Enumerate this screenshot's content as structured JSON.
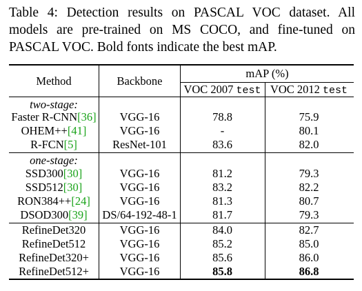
{
  "caption": {
    "line1": "Table 4: Detection results on PASCAL VOC dataset. All",
    "line2": "models are pre-trained on MS COCO, and fine-tuned on",
    "line3": "PASCAL VOC. Bold fonts indicate the best mAP."
  },
  "header": {
    "method": "Method",
    "backbone": "Backbone",
    "map": "mAP (%)",
    "voc2007_prefix": "VOC 2007 ",
    "voc2007_mono": "test",
    "voc2012_prefix": "VOC 2012 ",
    "voc2012_mono": "test"
  },
  "group1_label": "two-stage:",
  "group2_label": "one-stage:",
  "rows": [
    {
      "method": "Faster R-CNN",
      "cite": "[36]",
      "backbone": "VGG-16",
      "voc2007": "78.8",
      "voc2012": "75.9"
    },
    {
      "method": "OHEM++",
      "cite": "[41]",
      "backbone": "VGG-16",
      "voc2007": "-",
      "voc2012": "80.1"
    },
    {
      "method": "R-FCN",
      "cite": "[5]",
      "backbone": "ResNet-101",
      "voc2007": "83.6",
      "voc2012": "82.0"
    },
    {
      "method": "SSD300",
      "cite": "[30]",
      "backbone": "VGG-16",
      "voc2007": "81.2",
      "voc2012": "79.3"
    },
    {
      "method": "SSD512",
      "cite": "[30]",
      "backbone": "VGG-16",
      "voc2007": "83.2",
      "voc2012": "82.2"
    },
    {
      "method": "RON384++",
      "cite": "[24]",
      "backbone": "VGG-16",
      "voc2007": "81.3",
      "voc2012": "80.7"
    },
    {
      "method": "DSOD300",
      "cite": "[39]",
      "backbone": "DS/64-192-48-1",
      "voc2007": "81.7",
      "voc2012": "79.3"
    },
    {
      "method": "RefineDet320",
      "cite": "",
      "backbone": "VGG-16",
      "voc2007": "84.0",
      "voc2012": "82.7"
    },
    {
      "method": "RefineDet512",
      "cite": "",
      "backbone": "VGG-16",
      "voc2007": "85.2",
      "voc2012": "85.0"
    },
    {
      "method": "RefineDet320+",
      "cite": "",
      "backbone": "VGG-16",
      "voc2007": "85.6",
      "voc2012": "86.0"
    },
    {
      "method": "RefineDet512+",
      "cite": "",
      "backbone": "VGG-16",
      "voc2007": "85.8",
      "voc2012": "86.8"
    }
  ]
}
